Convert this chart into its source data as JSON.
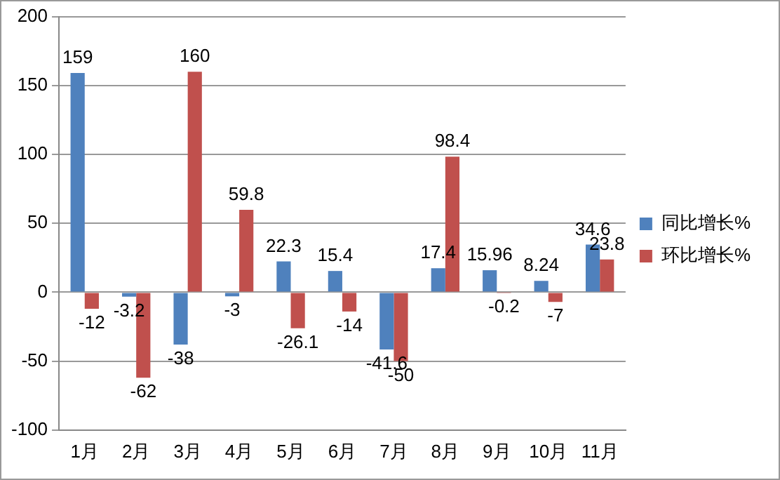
{
  "chart_data": {
    "type": "bar",
    "categories": [
      "1月",
      "2月",
      "3月",
      "4月",
      "5月",
      "6月",
      "7月",
      "8月",
      "9月",
      "10月",
      "11月"
    ],
    "series": [
      {
        "name": "同比增长%",
        "color": "#4f81bd",
        "values": [
          159,
          -3.2,
          -38,
          -3,
          22.3,
          15.4,
          -41.6,
          17.4,
          15.96,
          8.24,
          34.6
        ]
      },
      {
        "name": "环比增长%",
        "color": "#c0504d",
        "values": [
          -12,
          -62,
          160,
          59.8,
          -26.1,
          -14,
          -50,
          98.4,
          -0.2,
          -7,
          23.8
        ]
      }
    ],
    "ylim": [
      -100,
      200
    ],
    "yticks": [
      -100,
      -50,
      0,
      50,
      100,
      150,
      200
    ],
    "grid": "y",
    "legend": "right",
    "data_labels": true
  }
}
